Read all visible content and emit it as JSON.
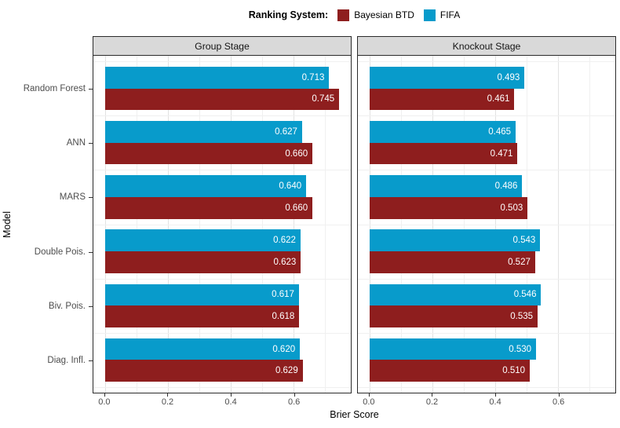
{
  "chart_data": {
    "type": "bar",
    "orientation": "horizontal",
    "xlabel": "Brier Score",
    "ylabel": "Model",
    "categories": [
      "Random Forest",
      "ANN",
      "MARS",
      "Double Pois.",
      "Biv. Pois.",
      "Diag. Infl."
    ],
    "xlim": [
      -0.037,
      0.782
    ],
    "x_ticks": [
      {
        "value": 0.0,
        "label": "0.0"
      },
      {
        "value": 0.2,
        "label": "0.2"
      },
      {
        "value": 0.4,
        "label": "0.4"
      },
      {
        "value": 0.6,
        "label": "0.6"
      }
    ],
    "x_minor_ticks": [
      0.1,
      0.3,
      0.5,
      0.7
    ],
    "grid": true,
    "legend": {
      "title": "Ranking System:",
      "position": "top",
      "entries": [
        {
          "label": "Bayesian BTD",
          "color": "#8E1E1E"
        },
        {
          "label": "FIFA",
          "color": "#089BCB"
        }
      ]
    },
    "colors": {
      "fifa": "#089BCB",
      "bayesian_btd": "#8E1E1E"
    },
    "facets": [
      {
        "label": "Group Stage",
        "series": [
          {
            "name": "FIFA",
            "color": "#089BCB",
            "values": [
              0.713,
              0.627,
              0.64,
              0.622,
              0.617,
              0.62
            ]
          },
          {
            "name": "Bayesian BTD",
            "color": "#8E1E1E",
            "values": [
              0.745,
              0.66,
              0.66,
              0.623,
              0.618,
              0.629
            ]
          }
        ]
      },
      {
        "label": "Knockout Stage",
        "series": [
          {
            "name": "FIFA",
            "color": "#089BCB",
            "values": [
              0.493,
              0.465,
              0.486,
              0.543,
              0.546,
              0.53
            ]
          },
          {
            "name": "Bayesian BTD",
            "color": "#8E1E1E",
            "values": [
              0.461,
              0.471,
              0.503,
              0.527,
              0.535,
              0.51
            ]
          }
        ]
      }
    ]
  }
}
